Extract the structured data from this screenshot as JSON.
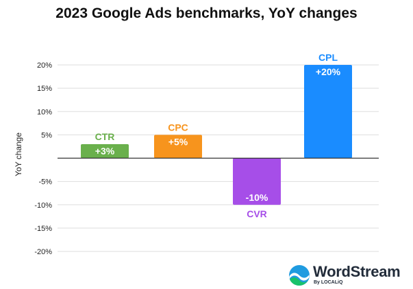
{
  "chart_data": {
    "type": "bar",
    "title": "2023 Google Ads benchmarks, YoY changes",
    "ylabel": "YoY change",
    "xlabel": "",
    "ylim": [
      -20,
      20
    ],
    "yticks": [
      20,
      15,
      10,
      5,
      0,
      -5,
      -10,
      -15,
      -20
    ],
    "ytick_labels": [
      "20%",
      "15%",
      "10%",
      "5%",
      "",
      "-5%",
      "-10%",
      "-15%",
      "-20%"
    ],
    "grid": true,
    "categories": [
      "CTR",
      "CPC",
      "CVR",
      "CPL"
    ],
    "values": [
      3,
      5,
      -10,
      20
    ],
    "value_labels": [
      "+3%",
      "+5%",
      "-10%",
      "+20%"
    ],
    "colors": [
      "#6ab04c",
      "#f7941d",
      "#a64ee8",
      "#1a8cff"
    ]
  },
  "brand": {
    "name": "WordStream",
    "tagline": "By LOCALiQ"
  }
}
